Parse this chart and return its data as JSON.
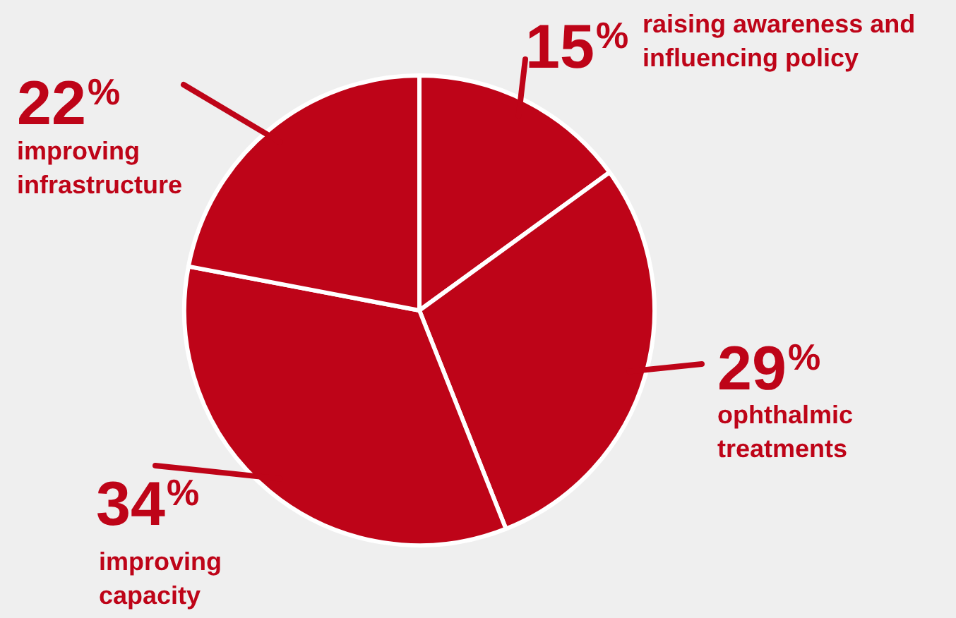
{
  "chart_data": {
    "type": "pie",
    "categories": [
      "raising awareness and influencing policy",
      "ophthalmic treatments",
      "improving capacity",
      "improving infrastructure"
    ],
    "values": [
      15,
      29,
      34,
      22
    ],
    "colors": [
      "#be0418",
      "#be0418",
      "#be0418",
      "#be0418"
    ],
    "value_labels": [
      "15%",
      "29%",
      "34%",
      "22%"
    ],
    "legend": false
  }
}
